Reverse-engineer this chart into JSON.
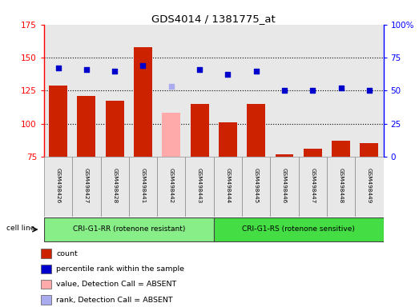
{
  "title": "GDS4014 / 1381775_at",
  "samples": [
    "GSM498426",
    "GSM498427",
    "GSM498428",
    "GSM498441",
    "GSM498442",
    "GSM498443",
    "GSM498444",
    "GSM498445",
    "GSM498446",
    "GSM498447",
    "GSM498448",
    "GSM498449"
  ],
  "bar_values": [
    129,
    121,
    117,
    158,
    108,
    115,
    101,
    115,
    77,
    81,
    87,
    85
  ],
  "bar_colors": [
    "#cc2200",
    "#cc2200",
    "#cc2200",
    "#cc2200",
    "#ffaaaa",
    "#cc2200",
    "#cc2200",
    "#cc2200",
    "#cc2200",
    "#cc2200",
    "#cc2200",
    "#cc2200"
  ],
  "dot_values": [
    67,
    66,
    65,
    69,
    53,
    66,
    62,
    65,
    50,
    50,
    52,
    50
  ],
  "dot_colors": [
    "#0000cc",
    "#0000cc",
    "#0000cc",
    "#0000cc",
    "#aaaaee",
    "#0000cc",
    "#0000cc",
    "#0000cc",
    "#0000cc",
    "#0000cc",
    "#0000cc",
    "#0000cc"
  ],
  "ylim_left": [
    75,
    175
  ],
  "ylim_right": [
    0,
    100
  ],
  "yticks_left": [
    75,
    100,
    125,
    150,
    175
  ],
  "yticks_right": [
    0,
    25,
    50,
    75,
    100
  ],
  "ytick_labels_left": [
    "75",
    "100",
    "125",
    "150",
    "175"
  ],
  "ytick_labels_right": [
    "0",
    "25",
    "50",
    "75",
    "100%"
  ],
  "group1_label": "CRI-G1-RR (rotenone resistant)",
  "group2_label": "CRI-G1-RS (rotenone sensitive)",
  "group1_color": "#88ee88",
  "group2_color": "#44dd44",
  "cell_line_label": "cell line",
  "legend_items": [
    {
      "label": "count",
      "color": "#cc2200"
    },
    {
      "label": "percentile rank within the sample",
      "color": "#0000cc"
    },
    {
      "label": "value, Detection Call = ABSENT",
      "color": "#ffaaaa"
    },
    {
      "label": "rank, Detection Call = ABSENT",
      "color": "#aaaaee"
    }
  ],
  "bg_color": "#ffffff",
  "plot_bg_color": "#e8e8e8",
  "grid_color": "#000000",
  "bar_bottom": 75,
  "group1_samples": 6,
  "group2_samples": 6
}
